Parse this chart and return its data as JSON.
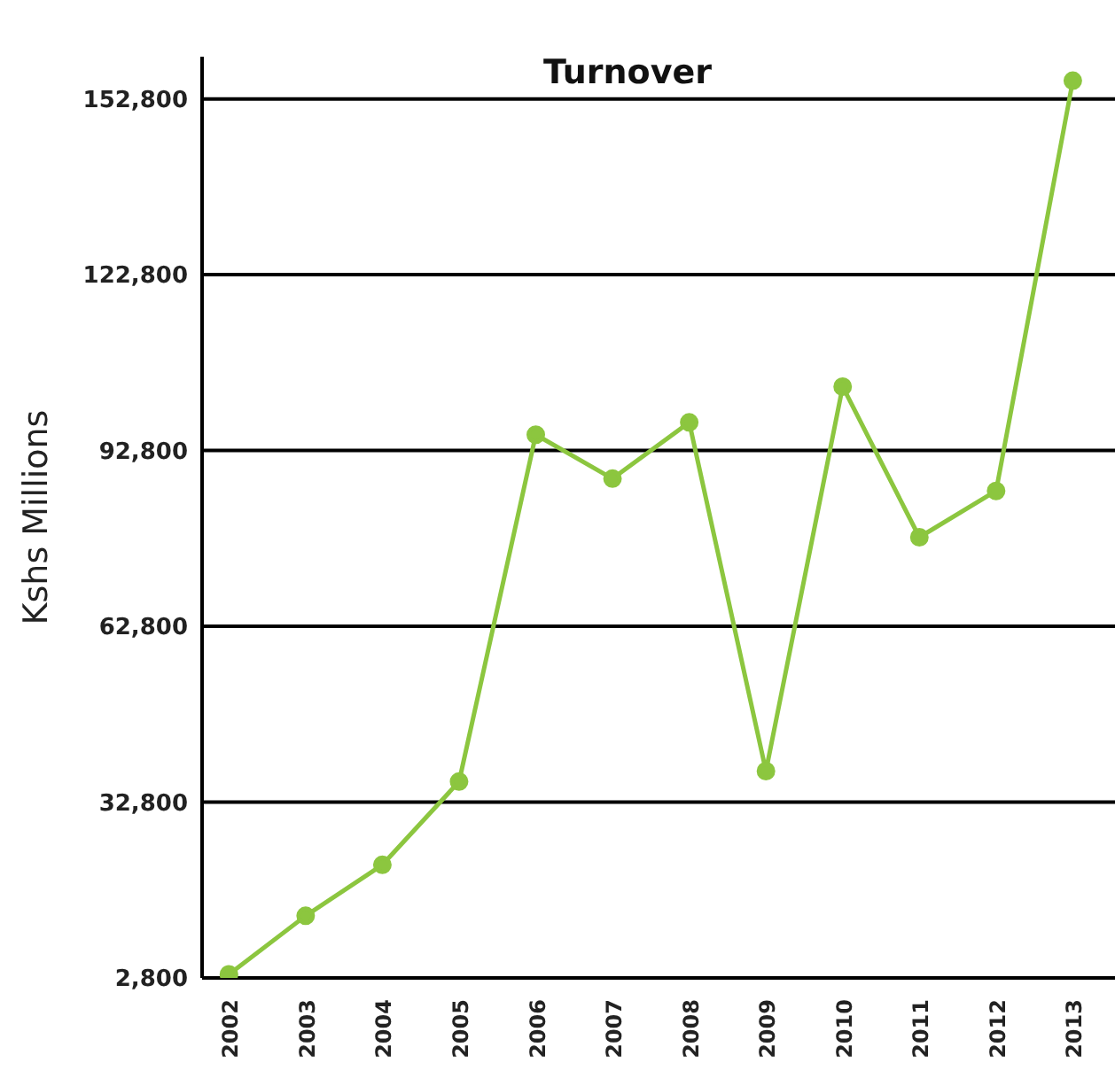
{
  "chart_data": {
    "type": "line",
    "title": "Turnover",
    "ylabel": "Kshs Millions",
    "categories": [
      "2002",
      "2003",
      "2004",
      "2005",
      "2006",
      "2007",
      "2008",
      "2009",
      "2010",
      "2011",
      "2012",
      "2013"
    ],
    "series": [
      {
        "color": "#8cc63f",
        "values": [
          3400,
          13400,
          22100,
          36300,
          95500,
          88000,
          97600,
          38100,
          103700,
          78000,
          85900,
          155900
        ]
      }
    ],
    "ylim": [
      2800,
      160000
    ],
    "yticks": [
      {
        "value": 2800,
        "label": "2,800"
      },
      {
        "value": 32800,
        "label": "32,800"
      },
      {
        "value": 62800,
        "label": "62,800"
      },
      {
        "value": 92800,
        "label": "92,800"
      },
      {
        "value": 122800,
        "label": "122,800"
      },
      {
        "value": 152800,
        "label": "152,800"
      }
    ],
    "grid": "y",
    "legend": false,
    "marker": "circle",
    "line_style": "solid"
  }
}
